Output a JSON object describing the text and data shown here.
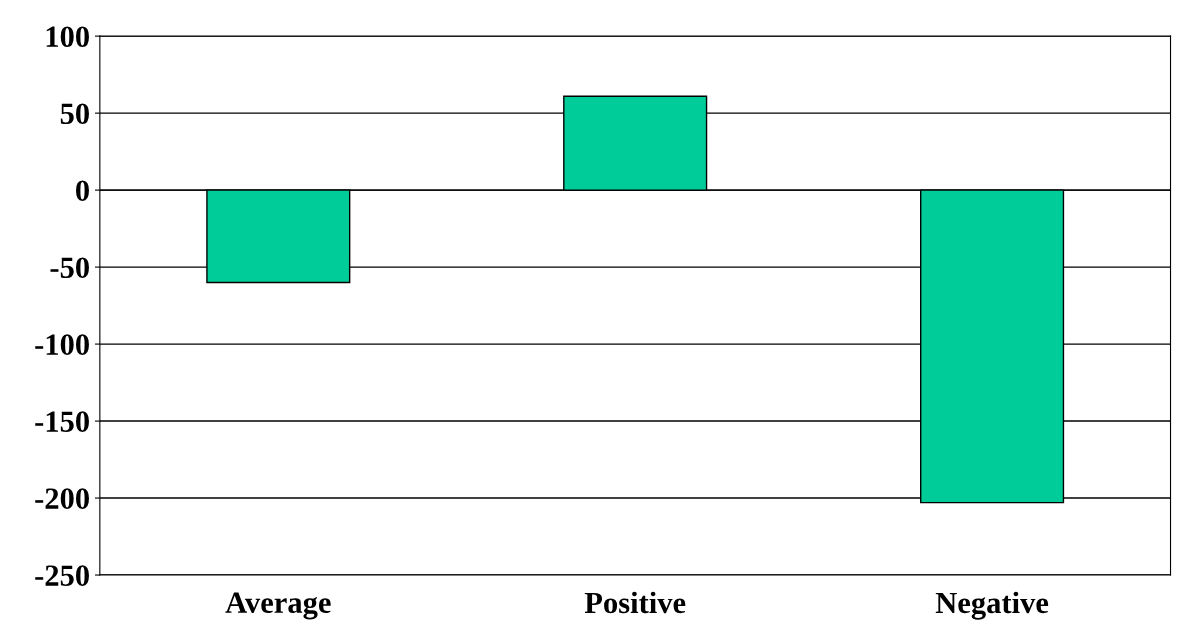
{
  "chart_data": {
    "type": "bar",
    "categories": [
      "Average",
      "Positive",
      "Negative"
    ],
    "values": [
      -60,
      61,
      -203
    ],
    "color": "#00cc99",
    "ylim": [
      -250,
      100
    ],
    "yticks": [
      -250,
      -200,
      -150,
      -100,
      -50,
      0,
      50,
      100
    ],
    "grid": "y"
  }
}
